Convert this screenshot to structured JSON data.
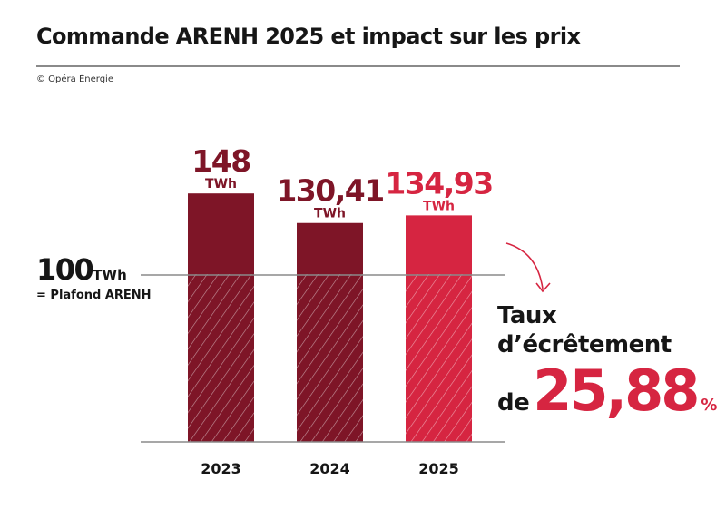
{
  "title": "Commande ARENH 2025 et impact sur les prix",
  "copyright": "© Opéra Énergie",
  "chart_data": {
    "type": "bar",
    "categories": [
      "2023",
      "2024",
      "2025"
    ],
    "values": [
      148,
      130.41,
      134.93
    ],
    "value_labels": [
      "148",
      "130,41",
      "134,93"
    ],
    "unit": "TWh",
    "colors": [
      "#7e1527",
      "#7e1527",
      "#d62541"
    ],
    "reference_line": {
      "value": 100,
      "label_value": "100",
      "label_unit": "TWh",
      "label": "= Plafond ARENH",
      "hatched_below": true
    },
    "ylim": [
      0,
      148
    ],
    "grid": false
  },
  "annotation": {
    "line1": "Taux",
    "line2": "d’écrêtement",
    "line3": "de",
    "value": "25,88",
    "unit": "%",
    "color": "#d62541"
  }
}
